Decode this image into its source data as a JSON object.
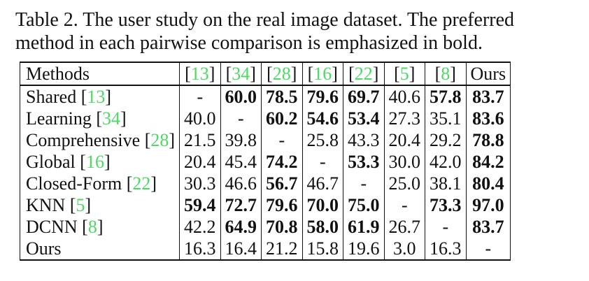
{
  "caption": {
    "line1": "Table 2. The user study on the real image dataset.  The preferred",
    "line2": "method in each pairwise comparison is emphasized in bold."
  },
  "table": {
    "header": {
      "first": "Methods",
      "columns": [
        {
          "open": "[",
          "ref": "13",
          "close": "]"
        },
        {
          "open": "[",
          "ref": "34",
          "close": "]"
        },
        {
          "open": "[",
          "ref": "28",
          "close": "]"
        },
        {
          "open": "[",
          "ref": "16",
          "close": "]"
        },
        {
          "open": "[",
          "ref": "22",
          "close": "]"
        },
        {
          "open": "[",
          "ref": "5",
          "close": "]"
        },
        {
          "open": "[",
          "ref": "8",
          "close": "]"
        },
        {
          "open": "Ours",
          "ref": "",
          "close": ""
        }
      ]
    },
    "rows": [
      {
        "name": "Shared ",
        "ref": "13",
        "cells": [
          {
            "v": "-",
            "b": false
          },
          {
            "v": "60.0",
            "b": true
          },
          {
            "v": "78.5",
            "b": true
          },
          {
            "v": "79.6",
            "b": true
          },
          {
            "v": "69.7",
            "b": true
          },
          {
            "v": "40.6",
            "b": false
          },
          {
            "v": "57.8",
            "b": true
          },
          {
            "v": "83.7",
            "b": true
          }
        ]
      },
      {
        "name": "Learning ",
        "ref": "34",
        "cells": [
          {
            "v": "40.0",
            "b": false
          },
          {
            "v": "-",
            "b": false
          },
          {
            "v": "60.2",
            "b": true
          },
          {
            "v": "54.6",
            "b": true
          },
          {
            "v": "53.4",
            "b": true
          },
          {
            "v": "27.3",
            "b": false
          },
          {
            "v": "35.1",
            "b": false
          },
          {
            "v": "83.6",
            "b": true
          }
        ]
      },
      {
        "name": "Comprehensive ",
        "ref": "28",
        "cells": [
          {
            "v": "21.5",
            "b": false
          },
          {
            "v": "39.8",
            "b": false
          },
          {
            "v": "-",
            "b": false
          },
          {
            "v": "25.8",
            "b": false
          },
          {
            "v": "43.3",
            "b": false
          },
          {
            "v": "20.4",
            "b": false
          },
          {
            "v": "29.2",
            "b": false
          },
          {
            "v": "78.8",
            "b": true
          }
        ]
      },
      {
        "name": "Global ",
        "ref": "16",
        "cells": [
          {
            "v": "20.4",
            "b": false
          },
          {
            "v": "45.4",
            "b": false
          },
          {
            "v": "74.2",
            "b": true
          },
          {
            "v": "-",
            "b": false
          },
          {
            "v": "53.3",
            "b": true
          },
          {
            "v": "30.0",
            "b": false
          },
          {
            "v": "42.0",
            "b": false
          },
          {
            "v": "84.2",
            "b": true
          }
        ]
      },
      {
        "name": "Closed-Form ",
        "ref": "22",
        "cells": [
          {
            "v": "30.3",
            "b": false
          },
          {
            "v": "46.6",
            "b": false
          },
          {
            "v": "56.7",
            "b": true
          },
          {
            "v": "46.7",
            "b": false
          },
          {
            "v": "-",
            "b": false
          },
          {
            "v": "25.0",
            "b": false
          },
          {
            "v": "38.1",
            "b": false
          },
          {
            "v": "80.4",
            "b": true
          }
        ]
      },
      {
        "name": "KNN ",
        "ref": "5",
        "cells": [
          {
            "v": "59.4",
            "b": true
          },
          {
            "v": "72.7",
            "b": true
          },
          {
            "v": "79.6",
            "b": true
          },
          {
            "v": "70.0",
            "b": true
          },
          {
            "v": "75.0",
            "b": true
          },
          {
            "v": "-",
            "b": false
          },
          {
            "v": "73.3",
            "b": true
          },
          {
            "v": "97.0",
            "b": true
          }
        ]
      },
      {
        "name": "DCNN ",
        "ref": "8",
        "cells": [
          {
            "v": "42.2",
            "b": false
          },
          {
            "v": "64.9",
            "b": true
          },
          {
            "v": "70.8",
            "b": true
          },
          {
            "v": "58.0",
            "b": true
          },
          {
            "v": "61.9",
            "b": true
          },
          {
            "v": "26.7",
            "b": false
          },
          {
            "v": "-",
            "b": false
          },
          {
            "v": "83.7",
            "b": true
          }
        ]
      },
      {
        "name": "Ours",
        "ref": "",
        "cells": [
          {
            "v": "16.3",
            "b": false
          },
          {
            "v": "16.4",
            "b": false
          },
          {
            "v": "21.2",
            "b": false
          },
          {
            "v": "15.8",
            "b": false
          },
          {
            "v": "19.6",
            "b": false
          },
          {
            "v": "3.0",
            "b": false
          },
          {
            "v": "16.3",
            "b": false
          },
          {
            "v": "-",
            "b": false
          }
        ]
      }
    ]
  },
  "colors": {
    "reference_link": "#4cd964",
    "text": "#111111"
  }
}
